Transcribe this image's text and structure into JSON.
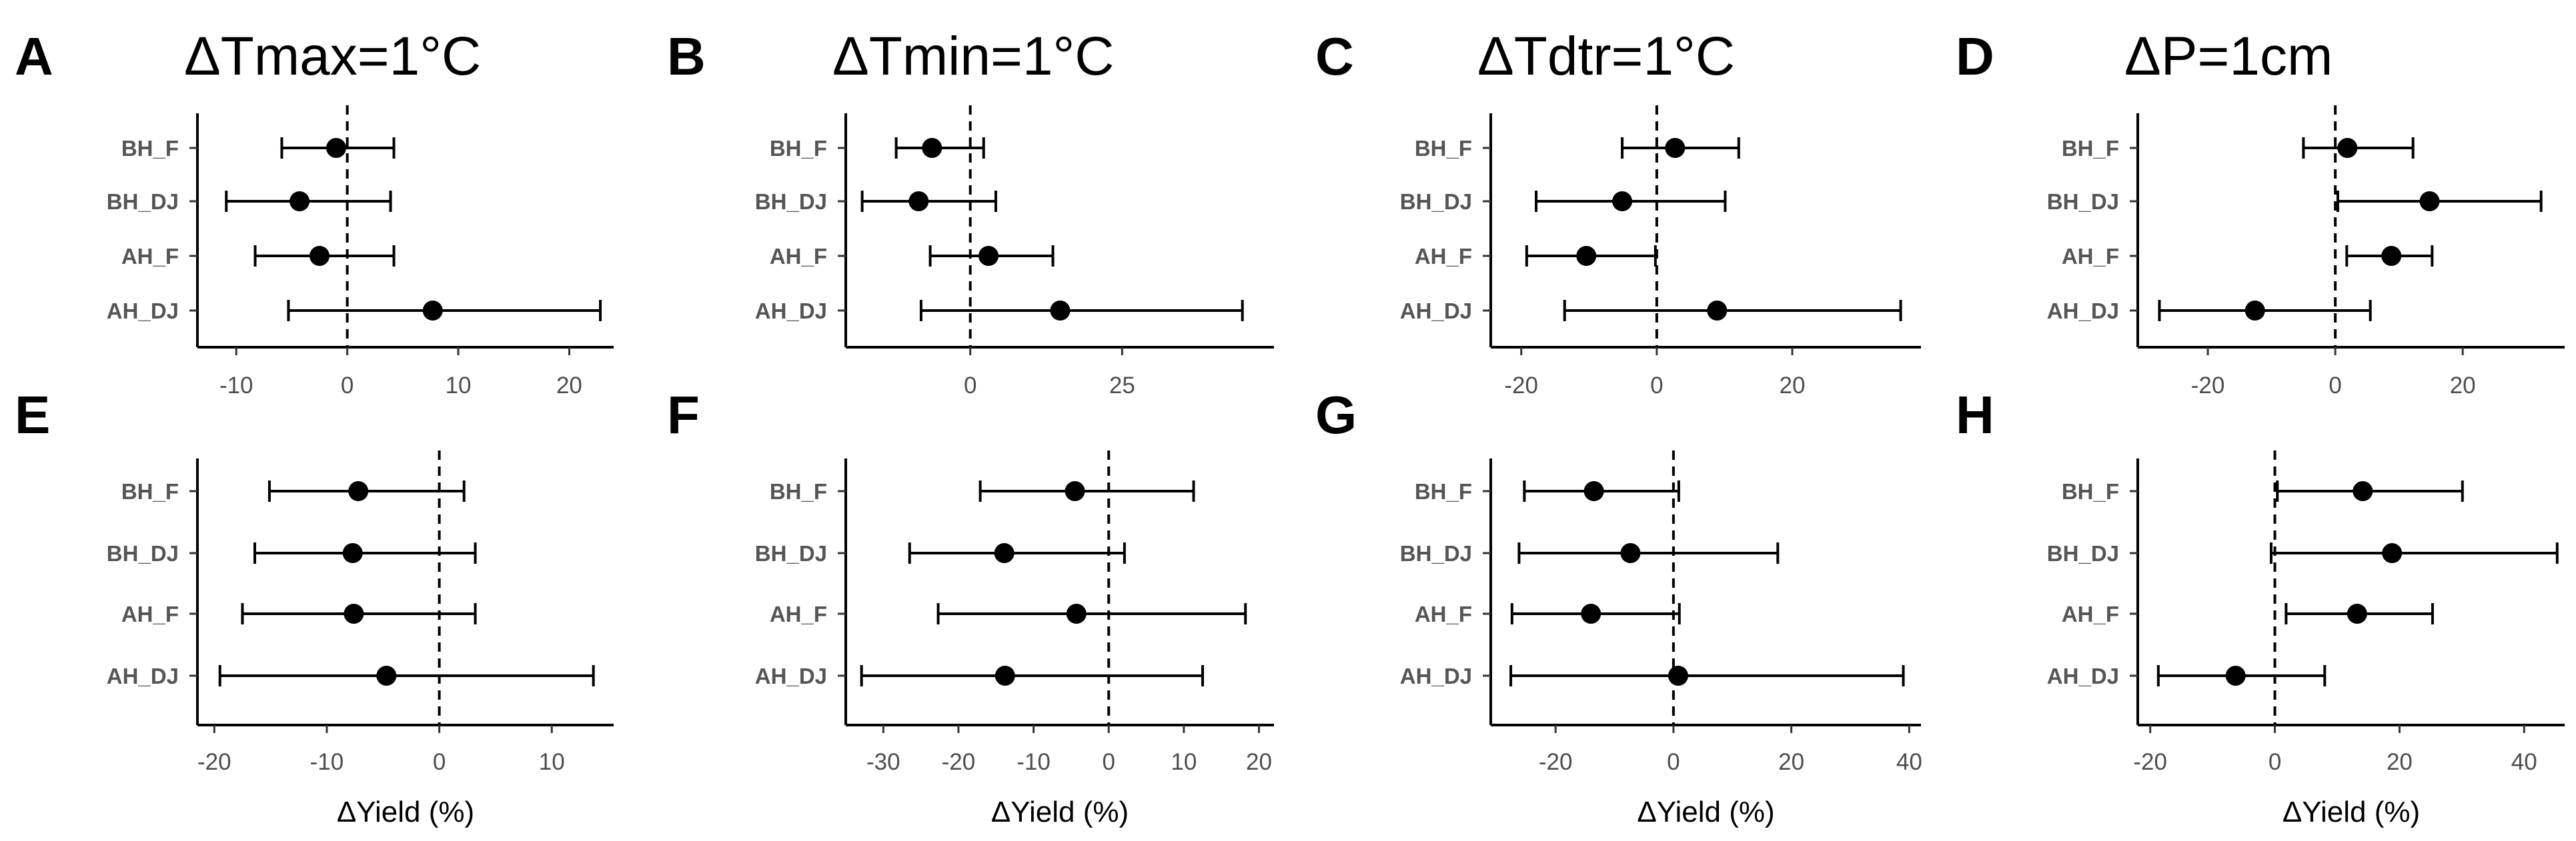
{
  "figure": {
    "row_categories": [
      "BH_F",
      "BH_DJ",
      "AH_F",
      "AH_DJ"
    ]
  },
  "chart_data": [
    {
      "type": "scatter",
      "panel": "A",
      "title": "ΔTmax=1°C",
      "xlabel": "",
      "xlim": [
        -13.5,
        24
      ],
      "xticks": [
        -10,
        0,
        10,
        20
      ],
      "tick_labels": [
        "-10",
        "0",
        "10",
        "20"
      ],
      "categories": [
        "BH_F",
        "BH_DJ",
        "AH_F",
        "AH_DJ"
      ],
      "estimates": [
        -1.0,
        -4.3,
        -2.5,
        7.7
      ],
      "ci_low": [
        -5.9,
        -10.9,
        -8.3,
        -5.3
      ],
      "ci_high": [
        4.2,
        3.9,
        4.2,
        22.8
      ],
      "reference_line": 0
    },
    {
      "type": "scatter",
      "panel": "B",
      "title": "ΔTmin=1°C",
      "xlabel": "",
      "xlim": [
        -20.5,
        50
      ],
      "xticks": [
        0,
        25
      ],
      "tick_labels": [
        "0",
        "25"
      ],
      "categories": [
        "BH_F",
        "BH_DJ",
        "AH_F",
        "AH_DJ"
      ],
      "estimates": [
        -6.3,
        -8.5,
        3.0,
        14.8
      ],
      "ci_low": [
        -12.2,
        -17.8,
        -6.6,
        -8.1
      ],
      "ci_high": [
        2.2,
        4.2,
        13.6,
        44.8
      ],
      "reference_line": 0
    },
    {
      "type": "scatter",
      "panel": "C",
      "title": "ΔTdtr=1°C",
      "xlabel": "",
      "xlim": [
        -24.5,
        39
      ],
      "xticks": [
        -20,
        0,
        20
      ],
      "tick_labels": [
        "-20",
        "0",
        "20"
      ],
      "categories": [
        "BH_F",
        "BH_DJ",
        "AH_F",
        "AH_DJ"
      ],
      "estimates": [
        2.7,
        -5.1,
        -10.4,
        8.9
      ],
      "ci_low": [
        -5.1,
        -17.8,
        -19.2,
        -13.6
      ],
      "ci_high": [
        12.1,
        10.1,
        -0.2,
        36.0
      ],
      "reference_line": 0
    },
    {
      "type": "scatter",
      "panel": "D",
      "title": "ΔP=1cm",
      "xlabel": "",
      "xlim": [
        -31,
        36
      ],
      "xticks": [
        -20,
        0,
        20
      ],
      "tick_labels": [
        "-20",
        "0",
        "20"
      ],
      "categories": [
        "BH_F",
        "BH_DJ",
        "AH_F",
        "AH_DJ"
      ],
      "estimates": [
        1.9,
        14.8,
        8.8,
        -12.6
      ],
      "ci_low": [
        -5.0,
        0.4,
        1.8,
        -27.6
      ],
      "ci_high": [
        12.2,
        32.3,
        15.2,
        5.5
      ],
      "reference_line": 0
    },
    {
      "type": "scatter",
      "panel": "E",
      "title": "",
      "xlabel": "ΔYield (%)",
      "xlim": [
        -21.5,
        15.5
      ],
      "xticks": [
        -20,
        -10,
        0,
        10
      ],
      "tick_labels": [
        "-20",
        "-10",
        "0",
        "10"
      ],
      "categories": [
        "BH_F",
        "BH_DJ",
        "AH_F",
        "AH_DJ"
      ],
      "estimates": [
        -7.2,
        -7.7,
        -7.6,
        -4.7
      ],
      "ci_low": [
        -15.1,
        -16.4,
        -17.5,
        -19.5
      ],
      "ci_high": [
        2.2,
        3.2,
        3.2,
        13.7
      ],
      "reference_line": 0
    },
    {
      "type": "scatter",
      "panel": "F",
      "title": "",
      "xlabel": "ΔYield (%)",
      "xlim": [
        -35,
        22
      ],
      "xticks": [
        -30,
        -20,
        -10,
        0,
        10,
        20
      ],
      "tick_labels": [
        "-30",
        "-20",
        "-10",
        "0",
        "10",
        "20"
      ],
      "categories": [
        "BH_F",
        "BH_DJ",
        "AH_F",
        "AH_DJ"
      ],
      "estimates": [
        -4.5,
        -13.9,
        -4.3,
        -13.8
      ],
      "ci_low": [
        -17.1,
        -26.5,
        -22.7,
        -32.9
      ],
      "ci_high": [
        11.3,
        2.1,
        18.2,
        12.5
      ],
      "reference_line": 0
    },
    {
      "type": "scatter",
      "panel": "G",
      "title": "",
      "xlabel": "ΔYield (%)",
      "xlim": [
        -31,
        42
      ],
      "xticks": [
        -20,
        0,
        20,
        40
      ],
      "tick_labels": [
        "-20",
        "0",
        "20",
        "40"
      ],
      "categories": [
        "BH_F",
        "BH_DJ",
        "AH_F",
        "AH_DJ"
      ],
      "estimates": [
        -13.5,
        -7.3,
        -14.0,
        0.8
      ],
      "ci_low": [
        -25.3,
        -26.2,
        -27.4,
        -27.6
      ],
      "ci_high": [
        0.9,
        17.7,
        1.0,
        39.0
      ],
      "reference_line": 0
    },
    {
      "type": "scatter",
      "panel": "H",
      "title": "",
      "xlabel": "ΔYield (%)",
      "xlim": [
        -22,
        46.5
      ],
      "xticks": [
        -20,
        0,
        20,
        40
      ],
      "tick_labels": [
        "-20",
        "0",
        "20",
        "40"
      ],
      "categories": [
        "BH_F",
        "BH_DJ",
        "AH_F",
        "AH_DJ"
      ],
      "estimates": [
        14.1,
        18.8,
        13.2,
        -6.3
      ],
      "ci_low": [
        0.4,
        -0.6,
        1.8,
        -18.7
      ],
      "ci_high": [
        30.1,
        45.3,
        25.3,
        8.0
      ],
      "reference_line": 0
    }
  ]
}
